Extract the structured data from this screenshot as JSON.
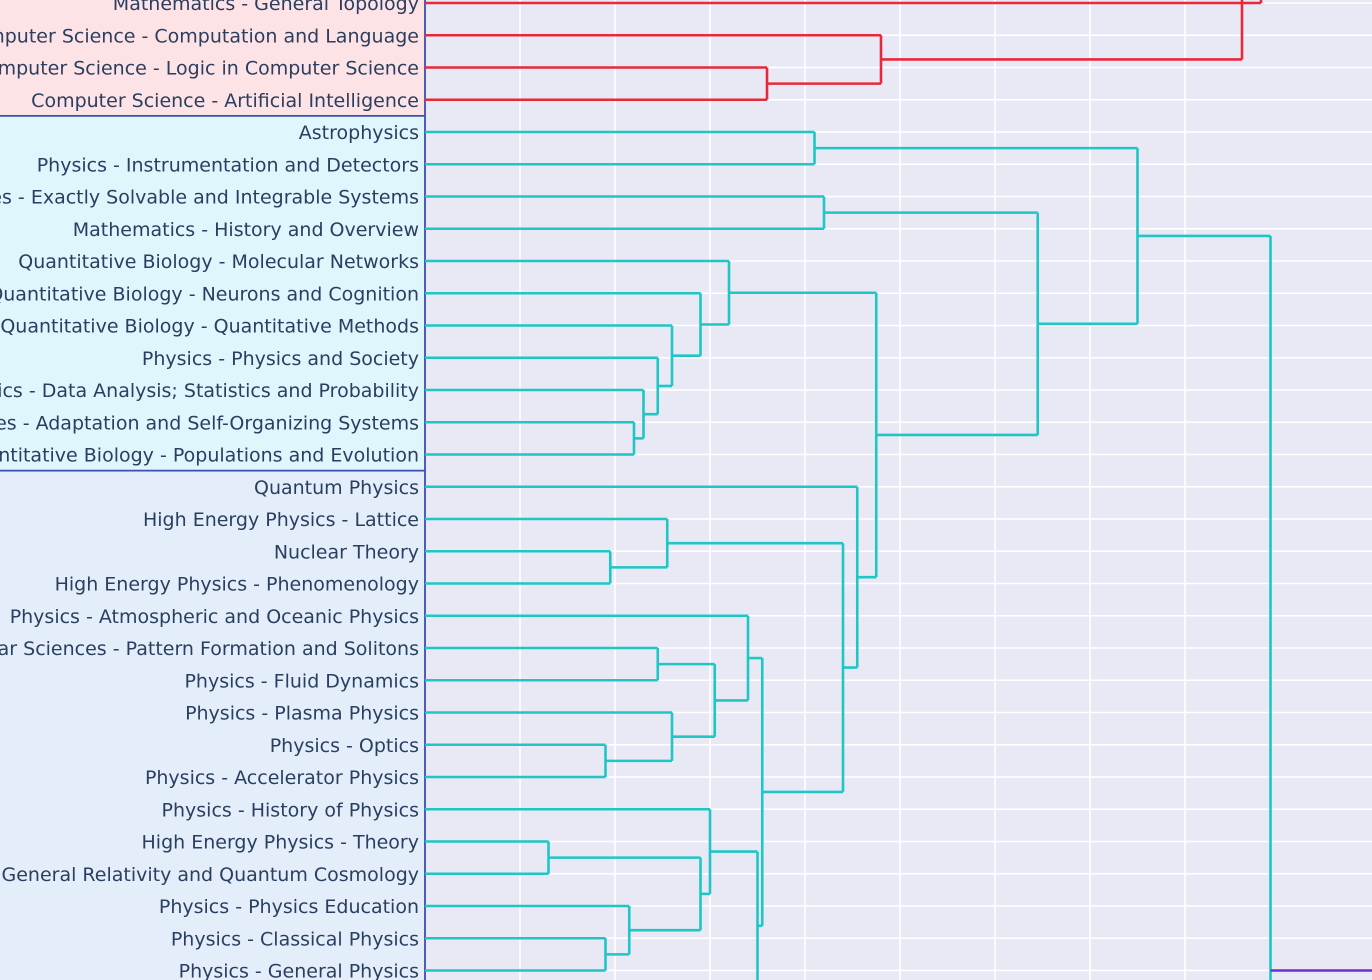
{
  "chart_data": {
    "type": "dendrogram",
    "orientation": "leaves-left",
    "colors": {
      "plot_bg": "#e8e9f4",
      "grid": "#ffffff",
      "cluster_red": "#e8293a",
      "cluster_teal": "#1ec6c6",
      "cluster_purple": "#6b2fd6",
      "group_red_bg": "#fde3e6",
      "group_teal1_bg": "#dff6fd",
      "group_teal2_bg": "#e3eefa",
      "group_border": "#3a4fb0"
    },
    "groups": [
      {
        "name": "red-group",
        "color": "group_red_bg",
        "first": 0,
        "last": 3
      },
      {
        "name": "teal-group-1",
        "color": "group_teal1_bg",
        "first": 4,
        "last": 14
      },
      {
        "name": "teal-group-2",
        "color": "group_teal2_bg",
        "first": 15,
        "last": 30
      }
    ],
    "leaves": [
      "Mathematics - General Topology",
      "Computer Science - Computation and Language",
      "Computer Science - Logic in Computer Science",
      "Computer Science - Artificial Intelligence",
      "Astrophysics",
      "Physics - Instrumentation and Detectors",
      "Nonlinear Sciences - Exactly Solvable and Integrable Systems",
      "Mathematics - History and Overview",
      "Quantitative Biology - Molecular Networks",
      "Quantitative Biology - Neurons and Cognition",
      "Quantitative Biology - Quantitative Methods",
      "Physics - Physics and Society",
      "Physics - Data Analysis; Statistics and Probability",
      "Nonlinear Sciences - Adaptation and Self-Organizing Systems",
      "Quantitative Biology - Populations and Evolution",
      "Quantum Physics",
      "High Energy Physics - Lattice",
      "Nuclear Theory",
      "High Energy Physics - Phenomenology",
      "Physics - Atmospheric and Oceanic Physics",
      "Nonlinear Sciences - Pattern Formation and Solitons",
      "Physics - Fluid Dynamics",
      "Physics - Plasma Physics",
      "Physics - Optics",
      "Physics - Accelerator Physics",
      "Physics - History of Physics",
      "High Energy Physics - Theory",
      "General Relativity and Quantum Cosmology",
      "Physics - Physics Education",
      "Physics - Classical Physics",
      "Physics - General Physics"
    ],
    "x_axis": {
      "grid": [
        1.0,
        2.0,
        3.0,
        4.0,
        5.0,
        6.0,
        7.0,
        8.0
      ],
      "range": [
        0,
        9.92
      ]
    },
    "merges": [
      {
        "id": "r0",
        "a": "L0",
        "b": "up",
        "h": 8.8,
        "color": "cluster_red"
      },
      {
        "id": "r1",
        "a": "L2",
        "b": "L3",
        "h": 3.6,
        "color": "cluster_red"
      },
      {
        "id": "r2",
        "a": "L1",
        "b": "r1",
        "h": 4.8,
        "color": "cluster_red"
      },
      {
        "id": "r3",
        "a": "r2",
        "b": "up",
        "h": 8.6,
        "color": "cluster_red"
      },
      {
        "id": "t1",
        "a": "L4",
        "b": "L5",
        "h": 4.1,
        "color": "cluster_teal"
      },
      {
        "id": "t2",
        "a": "L6",
        "b": "L7",
        "h": 4.2,
        "color": "cluster_teal"
      },
      {
        "id": "t3",
        "a": "L13",
        "b": "L14",
        "h": 2.2,
        "color": "cluster_teal"
      },
      {
        "id": "t4",
        "a": "L12",
        "b": "t3",
        "h": 2.3,
        "color": "cluster_teal"
      },
      {
        "id": "t5",
        "a": "L11",
        "b": "t4",
        "h": 2.45,
        "color": "cluster_teal"
      },
      {
        "id": "t6",
        "a": "L10",
        "b": "t5",
        "h": 2.6,
        "color": "cluster_teal"
      },
      {
        "id": "t7",
        "a": "L9",
        "b": "t6",
        "h": 2.9,
        "color": "cluster_teal"
      },
      {
        "id": "t8",
        "a": "L8",
        "b": "t7",
        "h": 3.2,
        "color": "cluster_teal"
      },
      {
        "id": "u1",
        "a": "L17",
        "b": "L18",
        "h": 1.95,
        "color": "cluster_teal"
      },
      {
        "id": "u2",
        "a": "L16",
        "b": "u1",
        "h": 2.55,
        "color": "cluster_teal"
      },
      {
        "id": "u3",
        "a": "L20",
        "b": "L21",
        "h": 2.45,
        "color": "cluster_teal"
      },
      {
        "id": "u4",
        "a": "L23",
        "b": "L24",
        "h": 1.9,
        "color": "cluster_teal"
      },
      {
        "id": "u5",
        "a": "L22",
        "b": "u4",
        "h": 2.6,
        "color": "cluster_teal"
      },
      {
        "id": "u6",
        "a": "u3",
        "b": "u5",
        "h": 3.05,
        "color": "cluster_teal"
      },
      {
        "id": "u7",
        "a": "L19",
        "b": "u6",
        "h": 3.4,
        "color": "cluster_teal"
      },
      {
        "id": "u8",
        "a": "L26",
        "b": "L27",
        "h": 1.3,
        "color": "cluster_teal"
      },
      {
        "id": "u9",
        "a": "L29",
        "b": "L30",
        "h": 1.9,
        "color": "cluster_teal"
      },
      {
        "id": "u10",
        "a": "L28",
        "b": "u9",
        "h": 2.15,
        "color": "cluster_teal"
      },
      {
        "id": "u11",
        "a": "u8",
        "b": "u10",
        "h": 2.9,
        "color": "cluster_teal"
      },
      {
        "id": "u12",
        "a": "L25",
        "b": "u11",
        "h": 3.0,
        "color": "cluster_teal"
      },
      {
        "id": "u13",
        "a": "u12",
        "b": "down",
        "h": 3.5,
        "color": "cluster_teal"
      },
      {
        "id": "u14",
        "a": "u7",
        "b": "u13",
        "h": 3.55,
        "color": "cluster_teal"
      },
      {
        "id": "u15",
        "a": "u2",
        "b": "u14",
        "h": 4.4,
        "color": "cluster_teal"
      },
      {
        "id": "u16",
        "a": "L15",
        "b": "u15",
        "h": 4.55,
        "color": "cluster_teal"
      },
      {
        "id": "v1",
        "a": "t8",
        "b": "u16",
        "h": 4.75,
        "color": "cluster_teal"
      },
      {
        "id": "v2",
        "a": "t2",
        "b": "v1",
        "h": 6.45,
        "color": "cluster_teal"
      },
      {
        "id": "v3",
        "a": "t1",
        "b": "v2",
        "h": 7.5,
        "color": "cluster_teal"
      },
      {
        "id": "v4",
        "a": "v3",
        "b": "down",
        "h": 8.9,
        "color": "cluster_teal"
      }
    ],
    "external_links": [
      {
        "name": "purple-link-top",
        "from_h": 8.8,
        "at_row": -0.35,
        "color": "cluster_purple"
      },
      {
        "name": "purple-link-bottom",
        "from_h": 8.9,
        "at_row": 30.0,
        "color": "cluster_purple"
      }
    ]
  }
}
